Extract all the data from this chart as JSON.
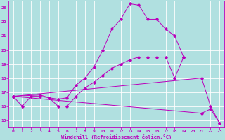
{
  "xlabel": "Windchill (Refroidissement éolien,°C)",
  "background_color": "#b0e0e0",
  "line_color": "#bb00bb",
  "xlim": [
    -0.5,
    23.5
  ],
  "ylim": [
    14.5,
    23.5
  ],
  "yticks": [
    15,
    16,
    17,
    18,
    19,
    20,
    21,
    22,
    23
  ],
  "xticks": [
    0,
    1,
    2,
    3,
    4,
    5,
    6,
    7,
    8,
    9,
    10,
    11,
    12,
    13,
    14,
    15,
    16,
    17,
    18,
    19,
    20,
    21,
    22,
    23
  ],
  "series": [
    {
      "x": [
        0,
        1,
        2,
        3,
        4,
        5,
        6,
        7,
        8,
        9,
        10,
        11,
        12,
        13,
        14,
        15,
        16,
        17,
        18,
        19
      ],
      "y": [
        16.7,
        16.0,
        16.7,
        16.7,
        16.6,
        16.5,
        16.6,
        17.5,
        18.0,
        18.8,
        20.0,
        21.5,
        22.2,
        23.3,
        23.2,
        22.2,
        22.2,
        21.5,
        21.0,
        19.5
      ]
    },
    {
      "x": [
        0,
        3,
        4,
        5,
        6,
        7,
        8,
        9,
        10,
        11,
        12,
        13,
        14,
        15,
        16,
        17,
        18,
        19
      ],
      "y": [
        16.7,
        16.8,
        16.6,
        16.0,
        16.0,
        16.7,
        17.3,
        17.7,
        18.2,
        18.7,
        19.0,
        19.3,
        19.5,
        19.5,
        19.5,
        19.5,
        18.0,
        19.5
      ]
    },
    {
      "x": [
        0,
        21,
        22,
        23
      ],
      "y": [
        16.7,
        18.0,
        16.0,
        14.8
      ]
    },
    {
      "x": [
        0,
        21,
        22,
        23
      ],
      "y": [
        16.7,
        15.5,
        15.8,
        14.8
      ]
    }
  ]
}
